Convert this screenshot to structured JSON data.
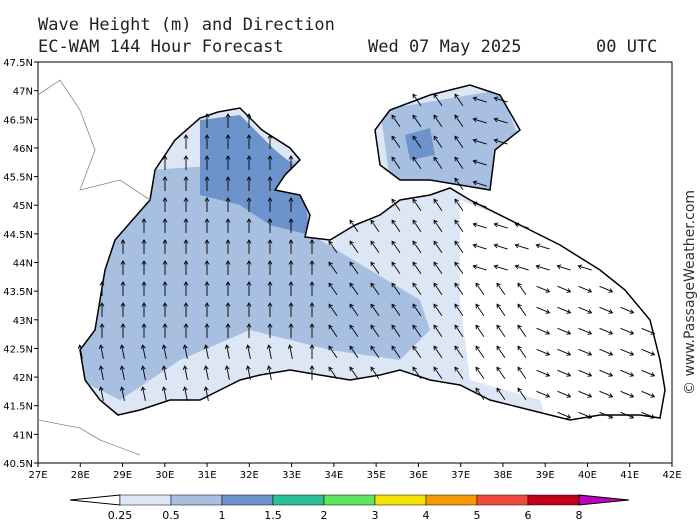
{
  "header": {
    "title": "Wave Height (m) and Direction",
    "model": "EC-WAM 144 Hour Forecast",
    "date": "Wed 07 May 2025",
    "time": "00 UTC"
  },
  "map": {
    "lat_labels": [
      "47.5N",
      "47N",
      "46.5N",
      "46N",
      "45.5N",
      "45N",
      "44.5N",
      "44N",
      "43.5N",
      "43N",
      "42.5N",
      "42N",
      "41.5N",
      "41N",
      "40.5N"
    ],
    "lon_labels": [
      "27E",
      "28E",
      "29E",
      "30E",
      "31E",
      "32E",
      "33E",
      "34E",
      "35E",
      "36E",
      "37E",
      "38E",
      "39E",
      "40E",
      "41E",
      "42E"
    ]
  },
  "legend": {
    "labels": [
      "0.25",
      "0.5",
      "1",
      "1.5",
      "2",
      "3",
      "4",
      "5",
      "6",
      "8"
    ],
    "colors": [
      "#dce6f5",
      "#a7bfe0",
      "#6d93cc",
      "#2bbf9a",
      "#5ee65e",
      "#f5e400",
      "#f59a00",
      "#f04a3c",
      "#c00018",
      "#c000c0"
    ]
  },
  "copyright": "© www.PassageWeather.com"
}
